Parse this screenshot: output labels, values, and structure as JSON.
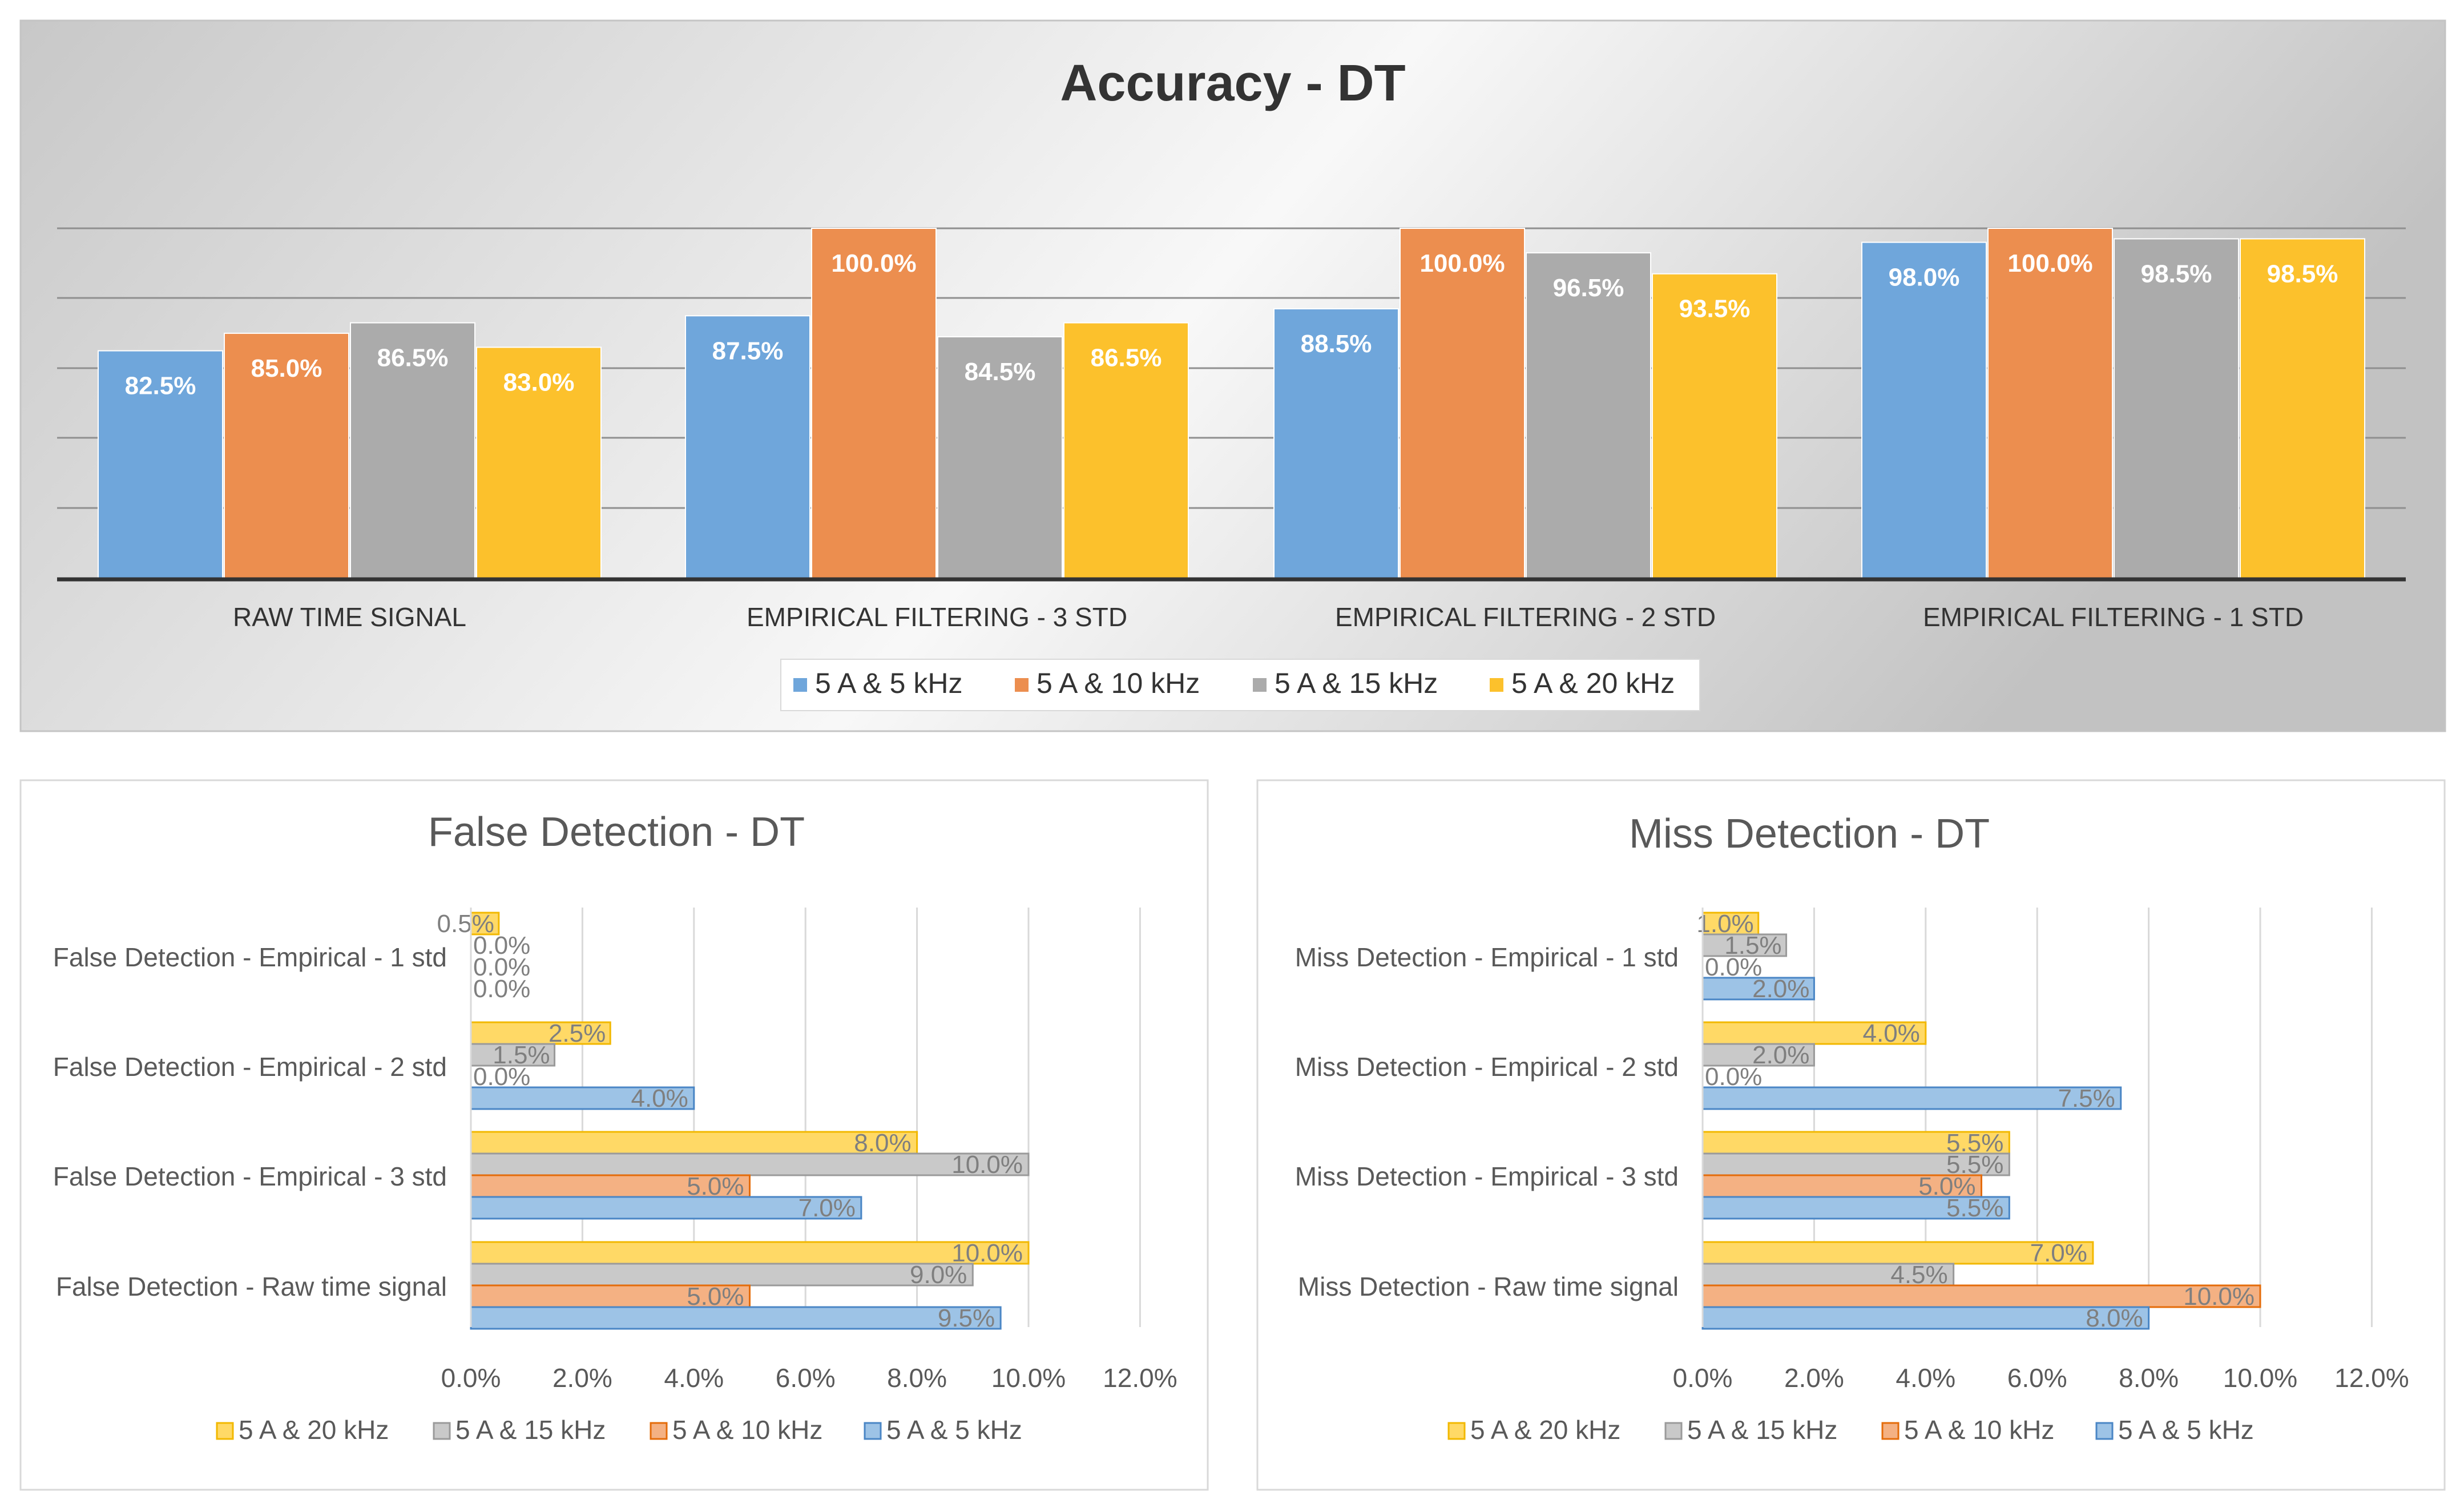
{
  "chart_data": [
    {
      "type": "bar",
      "title": "Accuracy - DT",
      "categories": [
        "RAW TIME SIGNAL",
        "EMPIRICAL FILTERING - 3 STD",
        "EMPIRICAL FILTERING - 2 STD",
        "EMPIRICAL FILTERING - 1 STD"
      ],
      "series": [
        {
          "name": "5 A & 5 kHz",
          "color": "#6fa6db",
          "values": [
            82.5,
            87.5,
            88.5,
            98.0
          ],
          "labels": [
            "82.5%",
            "87.5%",
            "88.5%",
            "98.0%"
          ]
        },
        {
          "name": "5 A & 10 kHz",
          "color": "#ec8e4f",
          "values": [
            85.0,
            100.0,
            100.0,
            100.0
          ],
          "labels": [
            "85.0%",
            "100.0%",
            "100.0%",
            "100.0%"
          ]
        },
        {
          "name": "5 A & 15 kHz",
          "color": "#ababab",
          "values": [
            86.5,
            84.5,
            96.5,
            98.5
          ],
          "labels": [
            "86.5%",
            "84.5%",
            "96.5%",
            "98.5%"
          ]
        },
        {
          "name": "5 A & 20 kHz",
          "color": "#fcc12c",
          "values": [
            83.0,
            86.5,
            93.5,
            98.5
          ],
          "labels": [
            "83.0%",
            "86.5%",
            "93.5%",
            "98.5%"
          ]
        }
      ],
      "ylim": [
        50,
        100
      ],
      "grid": true,
      "legend": "bottom"
    },
    {
      "type": "bar",
      "orientation": "horizontal",
      "title": "False Detection  - DT",
      "categories": [
        "False Detection - Empirical - 1 std",
        "False Detection - Empirical - 2 std",
        "False Detection - Empirical - 3 std",
        "False Detection - Raw time signal"
      ],
      "series": [
        {
          "name": "5 A & 20 kHz",
          "color": "#ffd966",
          "values": [
            0.5,
            2.5,
            8.0,
            10.0
          ],
          "labels": [
            "0.5%",
            "2.5%",
            "8.0%",
            "10.0%"
          ]
        },
        {
          "name": "5 A & 15 kHz",
          "color": "#c9c9c9",
          "values": [
            0.0,
            1.5,
            10.0,
            9.0
          ],
          "labels": [
            "0.0%",
            "1.5%",
            "10.0%",
            "9.0%"
          ]
        },
        {
          "name": "5 A & 10 kHz",
          "color": "#f4b183",
          "values": [
            0.0,
            null,
            5.0,
            5.0
          ],
          "labels": [
            "0.0%",
            "",
            "5.0%",
            "5.0%"
          ]
        },
        {
          "name": "5 A & 5 kHz",
          "color": "#9dc3e6",
          "values": [
            0.0,
            4.0,
            7.0,
            9.5
          ],
          "labels": [
            "0.0%",
            "4.0%",
            "7.0%",
            "9.5%"
          ]
        }
      ],
      "extra_label": "0.0%",
      "xlim": [
        0,
        12
      ],
      "xticks": [
        "0.0%",
        "2.0%",
        "4.0%",
        "6.0%",
        "8.0%",
        "10.0%",
        "12.0%"
      ],
      "grid": true,
      "legend": "bottom"
    },
    {
      "type": "bar",
      "orientation": "horizontal",
      "title": "Miss Detection  - DT",
      "categories": [
        "Miss Detection - Empirical - 1 std",
        "Miss Detection - Empirical - 2 std",
        "Miss Detection - Empirical - 3 std",
        "Miss Detection - Raw time signal"
      ],
      "series": [
        {
          "name": "5 A & 20 kHz",
          "color": "#ffd966",
          "values": [
            1.0,
            4.0,
            5.5,
            7.0
          ],
          "labels": [
            "1.0%",
            "4.0%",
            "5.5%",
            "7.0%"
          ]
        },
        {
          "name": "5 A & 15 kHz",
          "color": "#c9c9c9",
          "values": [
            1.5,
            2.0,
            5.5,
            4.5
          ],
          "labels": [
            "1.5%",
            "2.0%",
            "5.5%",
            "4.5%"
          ]
        },
        {
          "name": "5 A & 10 kHz",
          "color": "#f4b183",
          "values": [
            0.0,
            0.0,
            5.0,
            10.0
          ],
          "labels": [
            "0.0%",
            "0.0%",
            "5.0%",
            "10.0%"
          ]
        },
        {
          "name": "5 A & 5 kHz",
          "color": "#9dc3e6",
          "values": [
            2.0,
            7.5,
            5.5,
            8.0
          ],
          "labels": [
            "2.0%",
            "7.5%",
            "5.5%",
            "8.0%"
          ]
        }
      ],
      "xlim": [
        0,
        12
      ],
      "xticks": [
        "0.0%",
        "2.0%",
        "4.0%",
        "6.0%",
        "8.0%",
        "10.0%",
        "12.0%"
      ],
      "grid": true,
      "legend": "bottom"
    }
  ]
}
